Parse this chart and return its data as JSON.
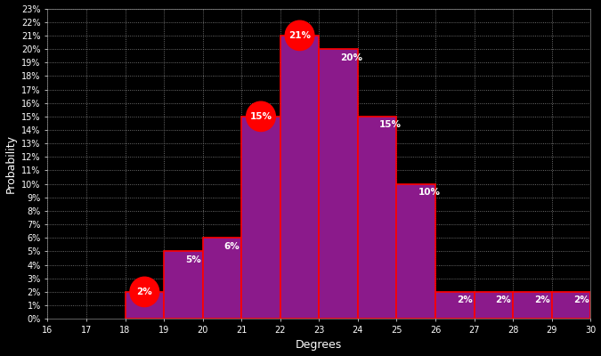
{
  "categories": [
    18,
    19,
    20,
    21,
    22,
    23,
    24,
    25,
    26,
    27,
    28,
    29
  ],
  "values": [
    2,
    5,
    6,
    15,
    21,
    20,
    15,
    10,
    2,
    2,
    2,
    2
  ],
  "bar_color": "#8B1A8B",
  "bar_edge_color": "#FF0000",
  "bar_edge_width": 1.2,
  "background_color": "#000000",
  "grid_color": "#666666",
  "text_color": "#FFFFFF",
  "xlabel": "Degrees",
  "ylabel": "Probability",
  "xlim": [
    16,
    30
  ],
  "ylim": [
    0,
    23
  ],
  "ytick_labels": [
    "0%",
    "1%",
    "2%",
    "3%",
    "4%",
    "5%",
    "6%",
    "7%",
    "8%",
    "9%",
    "10%",
    "11%",
    "12%",
    "13%",
    "14%",
    "15%",
    "16%",
    "17%",
    "18%",
    "19%",
    "20%",
    "21%",
    "22%",
    "23%"
  ],
  "xtick_vals": [
    16,
    17,
    18,
    19,
    20,
    21,
    22,
    23,
    24,
    25,
    26,
    27,
    28,
    29,
    30
  ],
  "xtick_labels": [
    "16",
    "17",
    "18",
    "19",
    "20",
    "21",
    "22",
    "23",
    "24",
    "25",
    "26",
    "27",
    "28",
    "29",
    "30"
  ],
  "red_circle_bars": [
    18,
    21,
    22
  ],
  "label_fontsize": 7.5,
  "axis_label_fontsize": 9,
  "tick_fontsize": 7,
  "figsize": [
    6.75,
    4.0
  ],
  "dpi": 100
}
